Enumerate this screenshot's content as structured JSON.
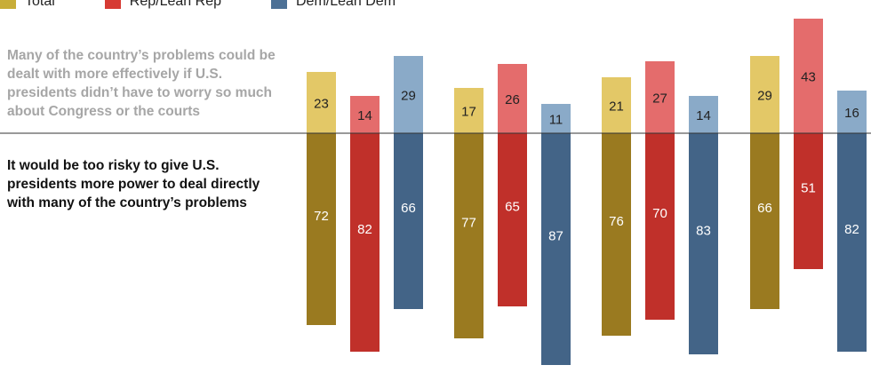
{
  "legend": {
    "items": [
      {
        "label": "Total",
        "color": "#c8ad38"
      },
      {
        "label": "Rep/Lean Rep",
        "color": "#d63a33"
      },
      {
        "label": "Dem/Lean Dem",
        "color": "#4d7196"
      }
    ]
  },
  "statements": {
    "top": "Many of the country’s problems could be dealt with more effectively if U.S. presidents didn’t have to worry so much about Congress or the courts",
    "bottom": "It would be too risky to give U.S. presidents more power to deal directly with many of the country’s problems"
  },
  "colors": {
    "top": [
      "#e3c867",
      "#e46c6c",
      "#8aaac8"
    ],
    "bottom": [
      "#9a7a20",
      "#c0302a",
      "#436487"
    ]
  },
  "chart_data": {
    "type": "bar",
    "layout": "diverging",
    "groups": 4,
    "series": [
      {
        "name": "Total",
        "top": [
          23,
          17,
          21,
          29
        ],
        "bottom": [
          72,
          77,
          76,
          66
        ]
      },
      {
        "name": "Rep/Lean Rep",
        "top": [
          14,
          26,
          27,
          43
        ],
        "bottom": [
          82,
          65,
          70,
          51
        ]
      },
      {
        "name": "Dem/Lean Dem",
        "top": [
          29,
          11,
          14,
          16
        ],
        "bottom": [
          66,
          87,
          83,
          82
        ]
      }
    ]
  }
}
